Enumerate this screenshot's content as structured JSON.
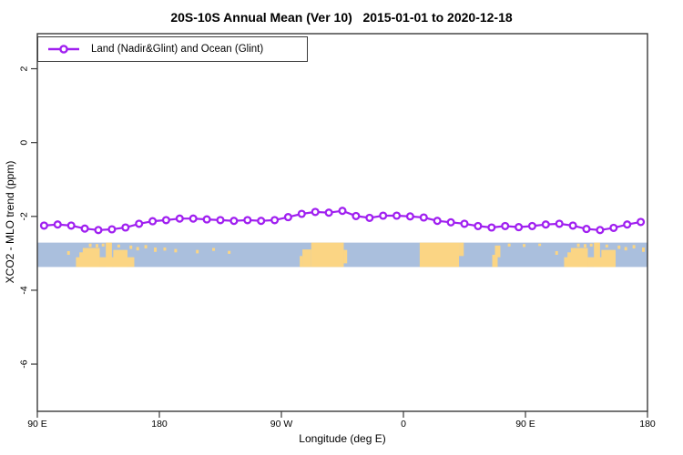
{
  "chart": {
    "title": "20S-10S Annual Mean (Ver 10)   2015-01-01 to 2020-12-18"
  },
  "legend": {
    "label": "Land (Nadir&Glint) and Ocean (Glint)"
  },
  "chart_data": {
    "type": "line",
    "title": "20S-10S Annual Mean (Ver 10)   2015-01-01 to 2020-12-18",
    "xlabel": "Longitude (deg E)",
    "ylabel": "XCO2 - MLO trend (ppm)",
    "grid": false,
    "legend_position": "top-left",
    "x_axis": {
      "note": "longitude wraps eastward: 90E -> 180 -> 90W -> 0 -> 90E -> 180, stored as extended deg E",
      "range_ext": [
        90,
        540
      ],
      "ticks_ext": [
        90,
        180,
        270,
        360,
        450,
        540
      ],
      "tick_labels": [
        "90 E",
        "180",
        "90 W",
        "0",
        "90 E",
        "180"
      ]
    },
    "y_axis": {
      "range": [
        -7.28,
        2.95
      ],
      "ticks": [
        2,
        0,
        -2,
        -4,
        -6
      ],
      "tick_labels": [
        "2",
        "0",
        "-2",
        "-4",
        "-6"
      ]
    },
    "series": [
      {
        "name": "Land (Nadir&Glint) and Ocean (Glint)",
        "color": "#a020f0",
        "marker": "open-circle",
        "x_ext": [
          95,
          105,
          115,
          125,
          135,
          145,
          155,
          165,
          175,
          185,
          195,
          205,
          215,
          225,
          235,
          245,
          255,
          265,
          275,
          285,
          295,
          305,
          315,
          325,
          335,
          345,
          355,
          365,
          375,
          385,
          395,
          405,
          415,
          425,
          435,
          445,
          455,
          465,
          475,
          485,
          495,
          505,
          515,
          525,
          535
        ],
        "values": [
          -2.25,
          -2.22,
          -2.25,
          -2.33,
          -2.37,
          -2.35,
          -2.3,
          -2.2,
          -2.13,
          -2.1,
          -2.06,
          -2.06,
          -2.08,
          -2.1,
          -2.12,
          -2.1,
          -2.12,
          -2.1,
          -2.02,
          -1.93,
          -1.88,
          -1.9,
          -1.85,
          -1.99,
          -2.04,
          -1.98,
          -1.98,
          -2.0,
          -2.03,
          -2.12,
          -2.16,
          -2.2,
          -2.26,
          -2.3,
          -2.26,
          -2.29,
          -2.26,
          -2.22,
          -2.2,
          -2.25,
          -2.34,
          -2.37,
          -2.31,
          -2.22,
          -2.15
        ]
      }
    ],
    "map_band": {
      "description": "20S-10S latitude strip world map drawn across the plot",
      "value_top": -2.71,
      "value_bottom": -3.37,
      "ocean_color": "#aabfdd",
      "land_color": "#fbd584",
      "land_patches": [
        {
          "lon": [
            118.5,
            161.5
          ],
          "band": [
            0.6,
            1
          ]
        },
        {
          "lon": [
            121,
            129
          ],
          "band": [
            0.4,
            1
          ]
        },
        {
          "lon": [
            123.5,
            136
          ],
          "band": [
            0.22,
            1
          ]
        },
        {
          "lon": [
            140.5,
            145
          ],
          "band": [
            0,
            1
          ]
        },
        {
          "lon": [
            146,
            156.5
          ],
          "band": [
            0.3,
            1
          ]
        },
        {
          "lon": [
            112,
            114
          ],
          "band": [
            0.35,
            0.5
          ]
        },
        {
          "lon": [
            128,
            130
          ],
          "band": [
            0.04,
            0.18
          ]
        },
        {
          "lon": [
            133,
            135
          ],
          "band": [
            0.06,
            0.2
          ]
        },
        {
          "lon": [
            137.5,
            139.5
          ],
          "band": [
            0.04,
            0.16
          ]
        },
        {
          "lon": [
            149,
            151
          ],
          "band": [
            0.08,
            0.2
          ]
        },
        {
          "lon": [
            158,
            160
          ],
          "band": [
            0.12,
            0.26
          ]
        },
        {
          "lon": [
            163,
            165
          ],
          "band": [
            0.18,
            0.32
          ]
        },
        {
          "lon": [
            169,
            171
          ],
          "band": [
            0.1,
            0.24
          ]
        },
        {
          "lon": [
            176,
            178
          ],
          "band": [
            0.2,
            0.38
          ]
        },
        {
          "lon": [
            183,
            185
          ],
          "band": [
            0.2,
            0.33
          ]
        },
        {
          "lon": [
            191,
            193
          ],
          "band": [
            0.26,
            0.4
          ]
        },
        {
          "lon": [
            207,
            209
          ],
          "band": [
            0.3,
            0.44
          ]
        },
        {
          "lon": [
            219,
            221
          ],
          "band": [
            0.22,
            0.34
          ]
        },
        {
          "lon": [
            230.5,
            232.5
          ],
          "band": [
            0.34,
            0.46
          ]
        },
        {
          "lon": [
            292,
            316
          ],
          "band": [
            0,
            1
          ]
        },
        {
          "lon": [
            285.5,
            292
          ],
          "band": [
            0.28,
            1
          ]
        },
        {
          "lon": [
            283.5,
            285.5
          ],
          "band": [
            0.55,
            1
          ]
        },
        {
          "lon": [
            316,
            318.5
          ],
          "band": [
            0.3,
            0.85
          ]
        },
        {
          "lon": [
            372,
            401
          ],
          "band": [
            0,
            1
          ]
        },
        {
          "lon": [
            401,
            404.5
          ],
          "band": [
            0,
            0.55
          ]
        },
        {
          "lon": [
            427.5,
            431.5
          ],
          "band": [
            0.12,
            0.6
          ]
        },
        {
          "lon": [
            425.5,
            429.5
          ],
          "band": [
            0.5,
            1
          ]
        },
        {
          "lon": [
            437,
            439
          ],
          "band": [
            0.04,
            0.16
          ]
        },
        {
          "lon": [
            448,
            450
          ],
          "band": [
            0.06,
            0.18
          ]
        },
        {
          "lon": [
            459.5,
            461.5
          ],
          "band": [
            0.04,
            0.14
          ]
        },
        {
          "lon": [
            478.5,
            516
          ],
          "band": [
            0.6,
            1
          ]
        },
        {
          "lon": [
            481,
            489
          ],
          "band": [
            0.4,
            1
          ]
        },
        {
          "lon": [
            483.5,
            496
          ],
          "band": [
            0.22,
            1
          ]
        },
        {
          "lon": [
            500.5,
            505
          ],
          "band": [
            0,
            1
          ]
        },
        {
          "lon": [
            506,
            516.5
          ],
          "band": [
            0.3,
            1
          ]
        },
        {
          "lon": [
            472,
            474
          ],
          "band": [
            0.35,
            0.5
          ]
        },
        {
          "lon": [
            488,
            490
          ],
          "band": [
            0.04,
            0.18
          ]
        },
        {
          "lon": [
            493,
            495
          ],
          "band": [
            0.06,
            0.2
          ]
        },
        {
          "lon": [
            497.5,
            499.5
          ],
          "band": [
            0.04,
            0.16
          ]
        },
        {
          "lon": [
            509,
            511
          ],
          "band": [
            0.08,
            0.2
          ]
        },
        {
          "lon": [
            518,
            520
          ],
          "band": [
            0.12,
            0.26
          ]
        },
        {
          "lon": [
            523,
            525
          ],
          "band": [
            0.18,
            0.32
          ]
        },
        {
          "lon": [
            529,
            531
          ],
          "band": [
            0.1,
            0.24
          ]
        },
        {
          "lon": [
            536,
            538
          ],
          "band": [
            0.2,
            0.38
          ]
        }
      ]
    },
    "colors": {
      "axis": "#3a3a3a",
      "tick_label": "#000000",
      "background": "#ffffff"
    }
  }
}
